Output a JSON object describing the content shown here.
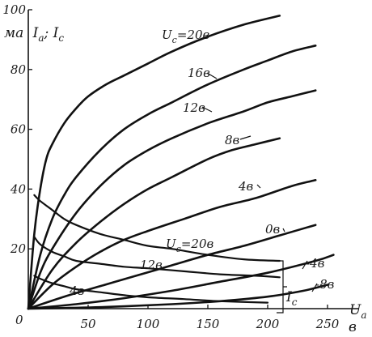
{
  "chart_data": {
    "type": "line",
    "x_ticks": [
      50,
      100,
      150,
      200,
      250
    ],
    "y_ticks": [
      20,
      40,
      60,
      80,
      100
    ],
    "origin_label": "0",
    "xlim": [
      0,
      270
    ],
    "ylim": [
      0,
      100
    ],
    "grid": false,
    "y_axis_title": "ма I_a; I_c",
    "y_axis_title_parts": {
      "unit": "ма",
      "ia": "I",
      "ia_sub": "a",
      "sep": "; ",
      "ic": "I",
      "ic_sub": "c"
    },
    "x_axis_title_parts": {
      "name": "U",
      "name_sub": "a",
      "unit": "в"
    },
    "anode_current": {
      "series": [
        {
          "label": "20в",
          "prefix": "U",
          "prefix_sub": "c",
          "prefix_eq": "=",
          "x": [
            0,
            5,
            10,
            15,
            20,
            30,
            40,
            50,
            65,
            80,
            100,
            120,
            150,
            180,
            210
          ],
          "y": [
            0,
            25,
            40,
            50,
            55,
            62,
            67,
            71,
            75,
            78,
            82,
            86,
            91,
            95,
            98
          ]
        },
        {
          "label": "16в",
          "x": [
            0,
            10,
            20,
            30,
            40,
            60,
            80,
            100,
            120,
            150,
            180,
            200,
            220,
            240
          ],
          "y": [
            0,
            18,
            30,
            38,
            44,
            53,
            60,
            65,
            69,
            75,
            80,
            83,
            86,
            88
          ]
        },
        {
          "label": "12в",
          "x": [
            0,
            10,
            20,
            40,
            60,
            80,
            100,
            120,
            150,
            180,
            200,
            220,
            240
          ],
          "y": [
            0,
            12,
            20,
            32,
            41,
            48,
            53,
            57,
            62,
            66,
            69,
            71,
            73
          ]
        },
        {
          "label": "8в",
          "x": [
            0,
            20,
            40,
            60,
            80,
            100,
            120,
            150,
            170,
            190,
            210
          ],
          "y": [
            0,
            13,
            22,
            29,
            35,
            40,
            44,
            50,
            53,
            55,
            57
          ]
        },
        {
          "label": "4в",
          "x": [
            0,
            20,
            40,
            60,
            80,
            100,
            130,
            160,
            190,
            220,
            240
          ],
          "y": [
            0,
            8,
            14,
            19,
            23,
            26,
            30,
            34,
            37,
            41,
            43
          ]
        },
        {
          "label": "0в",
          "x": [
            0,
            30,
            60,
            90,
            120,
            150,
            180,
            210,
            240
          ],
          "y": [
            0,
            4,
            7.5,
            11,
            14.5,
            18,
            21,
            24.5,
            28
          ]
        },
        {
          "label": "-4в",
          "x": [
            0,
            40,
            80,
            120,
            160,
            200,
            240,
            255
          ],
          "y": [
            0,
            1.5,
            3.5,
            6,
            9,
            12,
            16,
            18
          ]
        },
        {
          "label": "-8в",
          "x": [
            0,
            60,
            120,
            160,
            200,
            230,
            250
          ],
          "y": [
            0,
            0.5,
            1.5,
            2.5,
            4,
            6,
            8
          ]
        }
      ]
    },
    "grid_current": {
      "group_label_parts": {
        "name": "I",
        "sub": "c"
      },
      "series": [
        {
          "label": "20в",
          "prefix": "U",
          "prefix_sub": "c",
          "prefix_eq": "=",
          "x": [
            5,
            10,
            20,
            30,
            40,
            60,
            80,
            100,
            120,
            150,
            180,
            210
          ],
          "y": [
            38,
            36,
            33,
            30,
            28,
            25,
            23,
            21,
            20,
            18,
            16.5,
            16
          ]
        },
        {
          "label": "12в",
          "x": [
            5,
            10,
            20,
            30,
            40,
            60,
            80,
            100,
            130,
            160,
            190,
            210
          ],
          "y": [
            24,
            21.5,
            19,
            17.5,
            16,
            15,
            14,
            13.5,
            12.5,
            11.5,
            11,
            10.5
          ]
        },
        {
          "label": "4в",
          "x": [
            5,
            10,
            20,
            30,
            40,
            60,
            80,
            100,
            130,
            160,
            200
          ],
          "y": [
            11,
            10,
            8.5,
            7.5,
            6.5,
            5.5,
            4.5,
            3.8,
            3.2,
            2.5,
            2
          ]
        }
      ]
    }
  }
}
